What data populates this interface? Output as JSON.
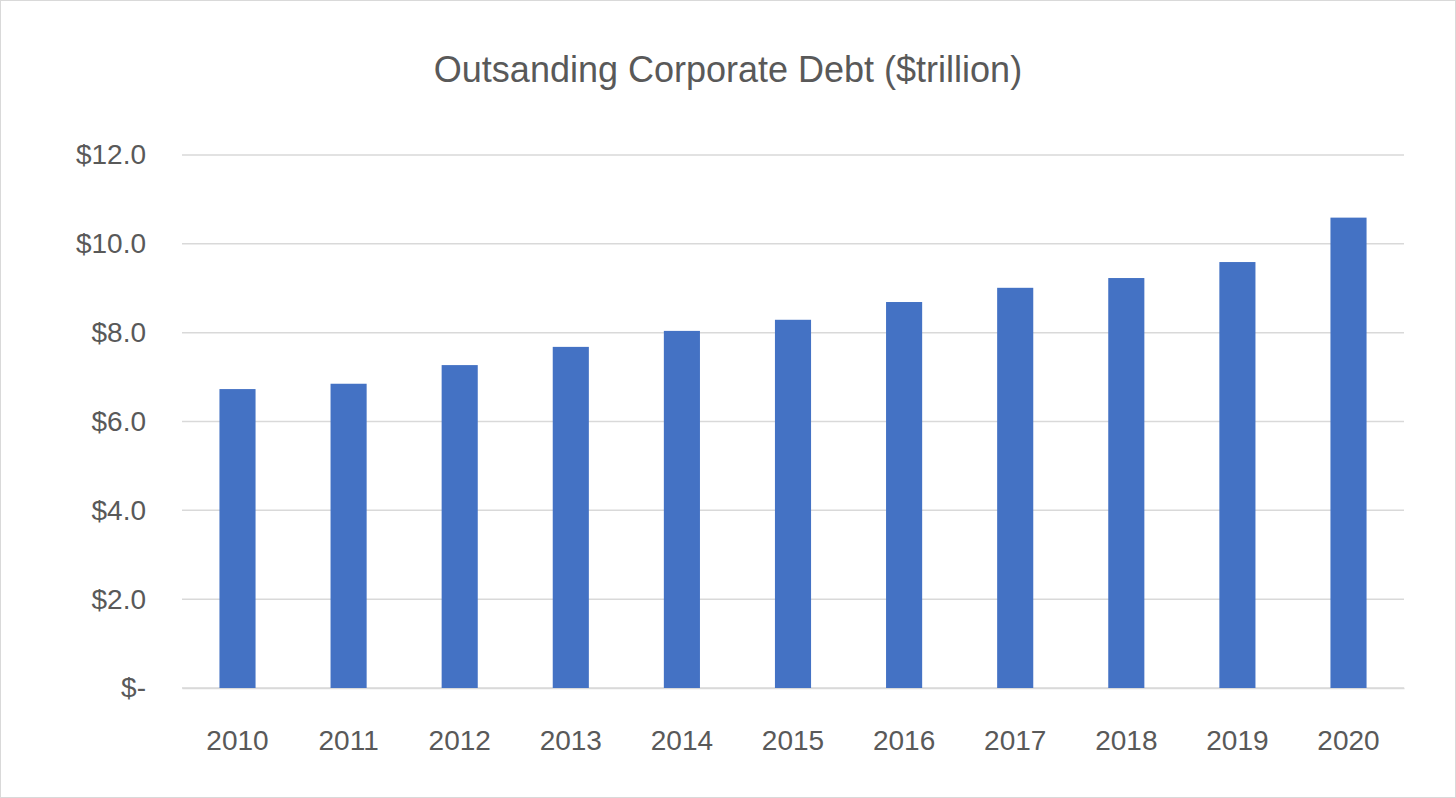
{
  "chart_data": {
    "type": "bar",
    "title": "Outsanding Corporate Debt ($trillion)",
    "categories": [
      "2010",
      "2011",
      "2012",
      "2013",
      "2014",
      "2015",
      "2016",
      "2017",
      "2018",
      "2019",
      "2020"
    ],
    "values": [
      6.73,
      6.85,
      7.27,
      7.68,
      8.04,
      8.29,
      8.69,
      9.01,
      9.23,
      9.59,
      10.59
    ],
    "color": "#4472c4",
    "ylim": [
      0,
      12
    ],
    "yticks": [
      {
        "value": 0,
        "label": "$-"
      },
      {
        "value": 2,
        "label": "$2.0"
      },
      {
        "value": 4,
        "label": "$4.0"
      },
      {
        "value": 6,
        "label": "$6.0"
      },
      {
        "value": 8,
        "label": "$8.0"
      },
      {
        "value": 10,
        "label": "$10.0"
      },
      {
        "value": 12,
        "label": "$12.0"
      }
    ],
    "grid": true
  }
}
